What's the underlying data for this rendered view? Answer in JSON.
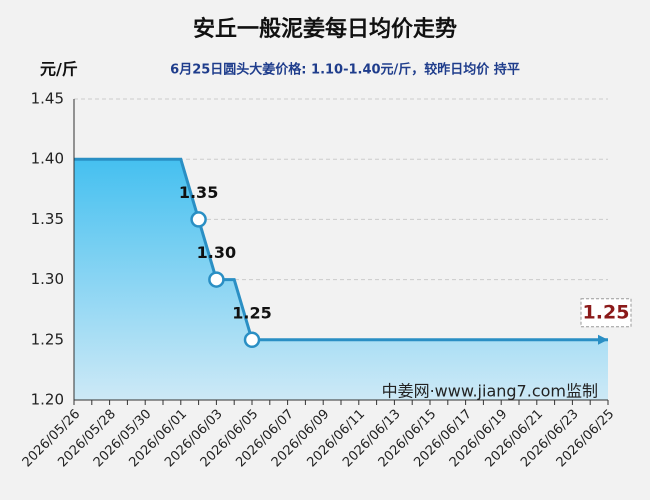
{
  "chart_data": {
    "type": "area",
    "title": "安丘一般泥姜每日均价走势",
    "y_label": "元/斤",
    "subtitle": "6月25日圆头大姜价格: 1.10-1.40元/斤，较昨日均价 持平",
    "annotation": "中姜网·www.jiang7.com监制",
    "categories": [
      "2026/05/26",
      null,
      "2026/05/28",
      null,
      "2026/05/30",
      null,
      "2026/06/01",
      null,
      "2026/06/03",
      null,
      "2026/06/05",
      null,
      "2026/06/07",
      null,
      "2026/06/09",
      null,
      "2026/06/11",
      null,
      "2026/06/13",
      null,
      "2026/06/15",
      null,
      "2026/06/17",
      null,
      "2026/06/19",
      null,
      "2026/06/21",
      null,
      "2026/06/23",
      null,
      "2026/06/25"
    ],
    "values": [
      1.4,
      1.4,
      1.4,
      1.4,
      1.4,
      1.4,
      1.4,
      1.35,
      1.3,
      1.3,
      1.25,
      1.25,
      1.25,
      1.25,
      1.25,
      1.25,
      1.25,
      1.25,
      1.25,
      1.25,
      1.25,
      1.25,
      1.25,
      1.25,
      1.25,
      1.25,
      1.25,
      1.25,
      1.25,
      1.25,
      1.25
    ],
    "value_labels": [
      null,
      null,
      null,
      null,
      null,
      null,
      null,
      "1.35",
      "1.30",
      null,
      "1.25",
      null,
      null,
      null,
      null,
      null,
      null,
      null,
      null,
      null,
      null,
      null,
      null,
      null,
      null,
      null,
      null,
      null,
      null,
      null,
      "1.25"
    ],
    "color": "#2a8fc4",
    "ylim": [
      1.2,
      1.45
    ],
    "yticks": [
      {
        "value": 1.2,
        "label": "1.20"
      },
      {
        "value": 1.25,
        "label": "1.25"
      },
      {
        "value": 1.3,
        "label": "1.30"
      },
      {
        "value": 1.35,
        "label": "1.35"
      },
      {
        "value": 1.4,
        "label": "1.40"
      },
      {
        "value": 1.45,
        "label": "1.45"
      }
    ],
    "grid": true
  }
}
